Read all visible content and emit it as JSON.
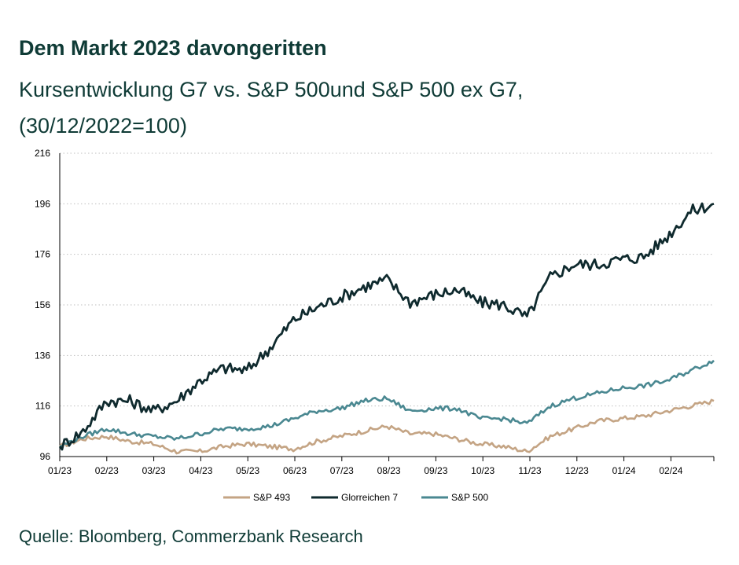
{
  "title": "Dem Markt 2023 davongeritten",
  "subtitle_line1": "Kursentwicklung G7 vs. S&P 500und S&P 500 ex G7,",
  "subtitle_line2": "(30/12/2022=100)",
  "source": "Quelle: Bloomberg, Commerzbank Research",
  "colors": {
    "sp493": "#c4a484",
    "g7": "#0f2a2e",
    "sp500": "#4a8891",
    "grid": "#bfbfbf",
    "axis": "#000000",
    "text": "#0f3b36"
  },
  "chart_data": {
    "type": "line",
    "title": "Dem Markt 2023 davongeritten",
    "xlabel": "",
    "ylabel": "",
    "x": [
      "12/30/22",
      "01/15/23",
      "02/01/23",
      "02/15/23",
      "03/01/23",
      "03/15/23",
      "04/01/23",
      "04/15/23",
      "05/01/23",
      "05/15/23",
      "06/01/23",
      "06/15/23",
      "07/01/23",
      "07/15/23",
      "08/01/23",
      "08/15/23",
      "09/01/23",
      "09/15/23",
      "10/01/23",
      "10/15/23",
      "11/01/23",
      "11/15/23",
      "12/01/23",
      "12/15/23",
      "01/01/24",
      "01/15/24",
      "02/01/24",
      "02/15/24",
      "02/29/24"
    ],
    "x_ticks": [
      "01/23",
      "02/23",
      "03/23",
      "04/23",
      "05/23",
      "06/23",
      "07/23",
      "08/23",
      "09/23",
      "10/23",
      "11/23",
      "12/23",
      "01/24",
      "02/24"
    ],
    "ylim": [
      96,
      216
    ],
    "y_ticks": [
      96,
      116,
      136,
      156,
      176,
      196,
      216
    ],
    "grid": "horizontal dotted",
    "legend_position": "bottom-center",
    "series": [
      {
        "name": "S&P 493",
        "color": "#c4a484",
        "values": [
          100,
          103,
          104,
          102,
          101,
          98,
          98,
          100,
          101,
          100,
          99,
          102,
          104,
          106,
          108,
          105,
          105,
          103,
          101,
          100,
          98,
          104,
          107,
          110,
          111,
          112,
          114,
          116,
          118
        ]
      },
      {
        "name": "Glorreichen 7",
        "color": "#0f2a2e",
        "values": [
          100,
          106,
          118,
          118,
          114,
          118,
          126,
          131,
          130,
          139,
          150,
          155,
          159,
          163,
          166,
          157,
          160,
          162,
          157,
          156,
          151,
          167,
          172,
          172,
          174,
          175,
          183,
          193,
          196
        ]
      },
      {
        "name": "S&P 500",
        "color": "#4a8891",
        "values": [
          100,
          104,
          107,
          105,
          104,
          103,
          105,
          107,
          107,
          108,
          111,
          114,
          115,
          118,
          119,
          114,
          115,
          115,
          111,
          111,
          109,
          116,
          119,
          121,
          123,
          124,
          126,
          130,
          134
        ]
      }
    ]
  }
}
